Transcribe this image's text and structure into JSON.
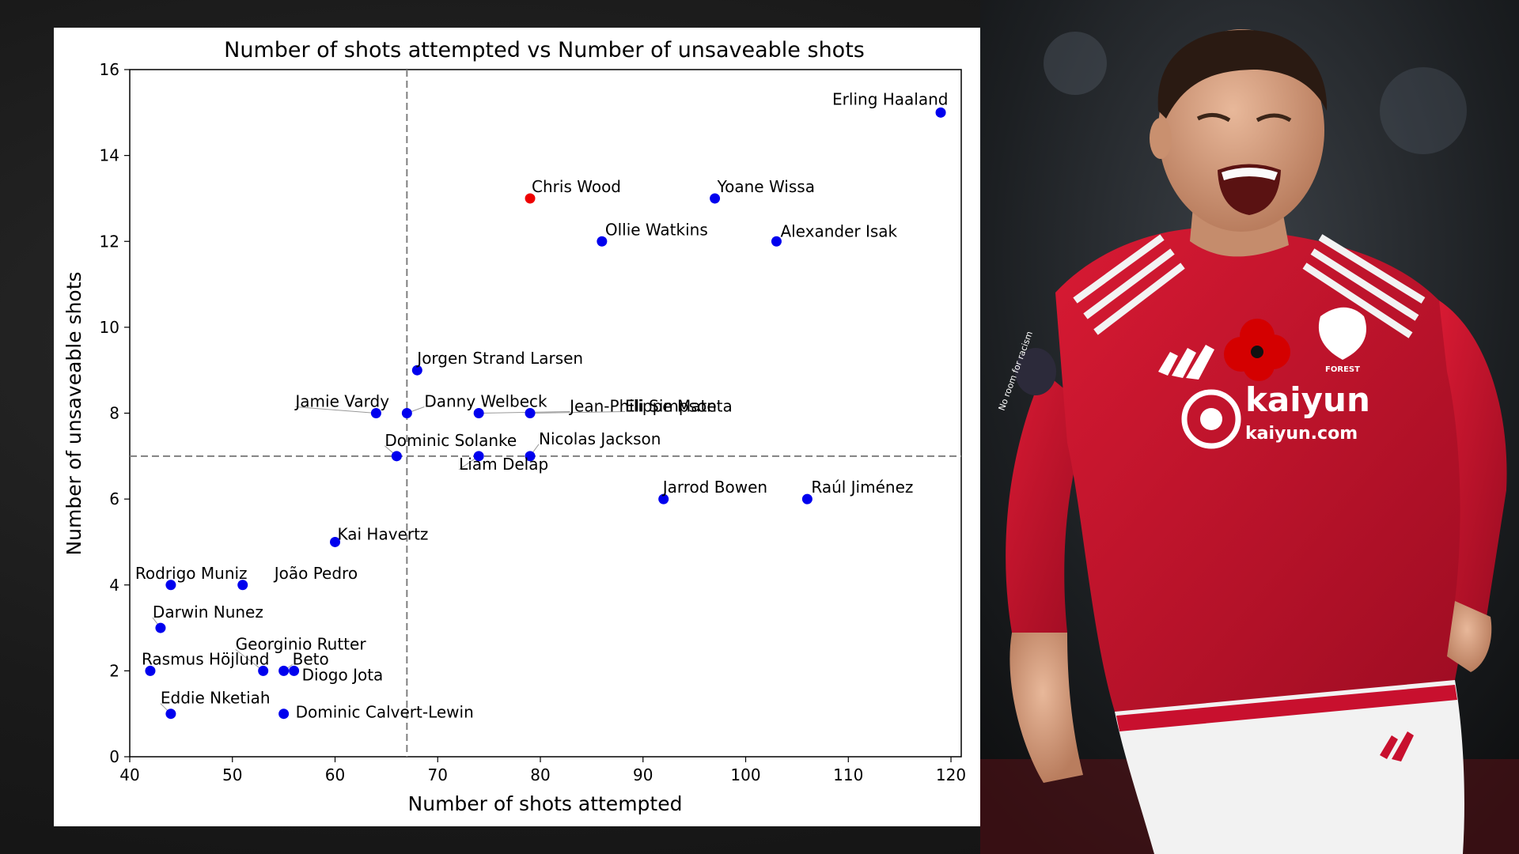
{
  "chart_data": {
    "type": "scatter",
    "title": "Number of shots attempted vs Number of unsaveable shots",
    "xlabel": "Number of shots attempted",
    "ylabel": "Number of unsaveable shots",
    "xlim": [
      40,
      121
    ],
    "ylim": [
      0,
      16
    ],
    "xticks": [
      40,
      50,
      60,
      70,
      80,
      90,
      100,
      110,
      120
    ],
    "yticks": [
      0,
      2,
      4,
      6,
      8,
      10,
      12,
      14,
      16
    ],
    "reference_lines": {
      "x": 67,
      "y": 7
    },
    "grid": false,
    "colors": {
      "default": "#0000ee",
      "highlight": "#ee0000",
      "reference": "#808080"
    },
    "points": [
      {
        "name": "Erling Haaland",
        "x": 119,
        "y": 15,
        "highlight": false
      },
      {
        "name": "Chris Wood",
        "x": 79,
        "y": 13,
        "highlight": true
      },
      {
        "name": "Yoane Wissa",
        "x": 97,
        "y": 13,
        "highlight": false
      },
      {
        "name": "Ollie Watkins",
        "x": 86,
        "y": 12,
        "highlight": false
      },
      {
        "name": "Alexander Isak",
        "x": 103,
        "y": 12,
        "highlight": false
      },
      {
        "name": "Jorgen Strand Larsen",
        "x": 68,
        "y": 9,
        "highlight": false
      },
      {
        "name": "Jamie Vardy",
        "x": 64,
        "y": 8,
        "highlight": false
      },
      {
        "name": "Danny Welbeck",
        "x": 67,
        "y": 8,
        "highlight": false
      },
      {
        "name": "Jean-Philippe Mateta",
        "x": 74,
        "y": 8,
        "highlight": false
      },
      {
        "name": "Eli Simpson",
        "x": 79,
        "y": 8,
        "highlight": false
      },
      {
        "name": "Dominic Solanke",
        "x": 66,
        "y": 7,
        "highlight": false
      },
      {
        "name": "Liam Delap",
        "x": 74,
        "y": 7,
        "highlight": false
      },
      {
        "name": "Nicolas Jackson",
        "x": 79,
        "y": 7,
        "highlight": false
      },
      {
        "name": "Jarrod Bowen",
        "x": 92,
        "y": 6,
        "highlight": false
      },
      {
        "name": "Raúl Jiménez",
        "x": 106,
        "y": 6,
        "highlight": false
      },
      {
        "name": "Kai Havertz",
        "x": 60,
        "y": 5,
        "highlight": false
      },
      {
        "name": "Rodrigo Muniz",
        "x": 44,
        "y": 4,
        "highlight": false
      },
      {
        "name": "João Pedro",
        "x": 51,
        "y": 4,
        "highlight": false
      },
      {
        "name": "Darwin Nunez",
        "x": 43,
        "y": 3,
        "highlight": false
      },
      {
        "name": "Rasmus Höjlund",
        "x": 42,
        "y": 2,
        "highlight": false
      },
      {
        "name": "Georginio Rutter",
        "x": 53,
        "y": 2,
        "highlight": false
      },
      {
        "name": "Beto",
        "x": 55,
        "y": 2,
        "highlight": false
      },
      {
        "name": "Diogo Jota",
        "x": 56,
        "y": 2,
        "highlight": false
      },
      {
        "name": "Eddie Nketiah",
        "x": 44,
        "y": 1,
        "highlight": false
      },
      {
        "name": "Dominic Calvert-Lewin",
        "x": 55,
        "y": 1,
        "highlight": false
      }
    ]
  },
  "photo": {
    "sponsor_big": "kaiyun",
    "sponsor_small": "kaiyun.com",
    "crest_text": "FOREST",
    "sleeve_text": "No room for racism",
    "colors": {
      "shirt": "#c8102e",
      "shirt_dark": "#8e0b1f",
      "skin": "#d9a88a",
      "hair": "#2a1a12",
      "shorts": "#f2f2f2"
    }
  }
}
